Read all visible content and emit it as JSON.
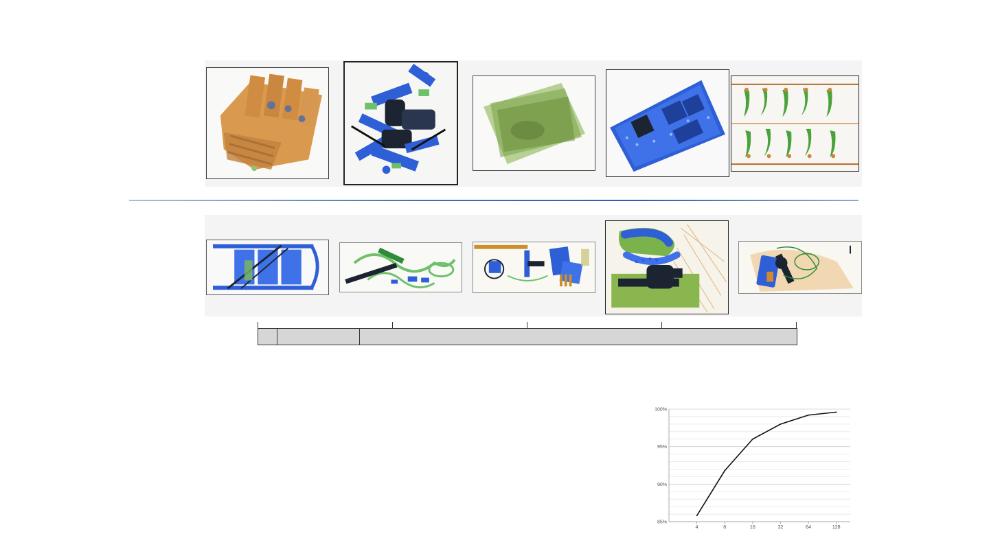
{
  "top_row": {
    "thumbnails": [
      {
        "icon": "orange-packaged-boxes-xray"
      },
      {
        "icon": "scattered-blue-tools-xray"
      },
      {
        "icon": "green-stacked-sheets-xray"
      },
      {
        "icon": "blue-circuit-board-xray"
      },
      {
        "icon": "green-plants-in-bags-xray"
      }
    ]
  },
  "bottom_row": {
    "thumbnails": [
      {
        "icon": "blue-stepladder-xray"
      },
      {
        "icon": "green-cables-and-rifle-xray"
      },
      {
        "icon": "mixed-electronics-xray"
      },
      {
        "icon": "backpack-with-handgun-xray"
      },
      {
        "icon": "bag-with-device-xray"
      }
    ]
  },
  "colors": {
    "xray_orange": "#d3872f",
    "xray_green": "#7fb85a",
    "xray_blue": "#2e5fd6",
    "xray_dark": "#1b2430",
    "divider_blue": "#2f5fa8",
    "timeline_fill": "#d6d6d6"
  },
  "chart_data": {
    "type": "line",
    "title": "",
    "xlabel": "",
    "ylabel": "",
    "x_scale": "log2",
    "categories": [
      "4",
      "8",
      "16",
      "32",
      "64",
      "128"
    ],
    "x": [
      4,
      8,
      16,
      32,
      64,
      128
    ],
    "values": [
      85.8,
      91.8,
      96.0,
      98.0,
      99.2,
      99.6
    ],
    "ylim": [
      85,
      100
    ],
    "yticks": [
      "85%",
      "90%",
      "95%",
      "100%"
    ],
    "ytick_values": [
      85,
      90,
      95,
      100
    ],
    "grid": true,
    "series_color": "#111111"
  }
}
